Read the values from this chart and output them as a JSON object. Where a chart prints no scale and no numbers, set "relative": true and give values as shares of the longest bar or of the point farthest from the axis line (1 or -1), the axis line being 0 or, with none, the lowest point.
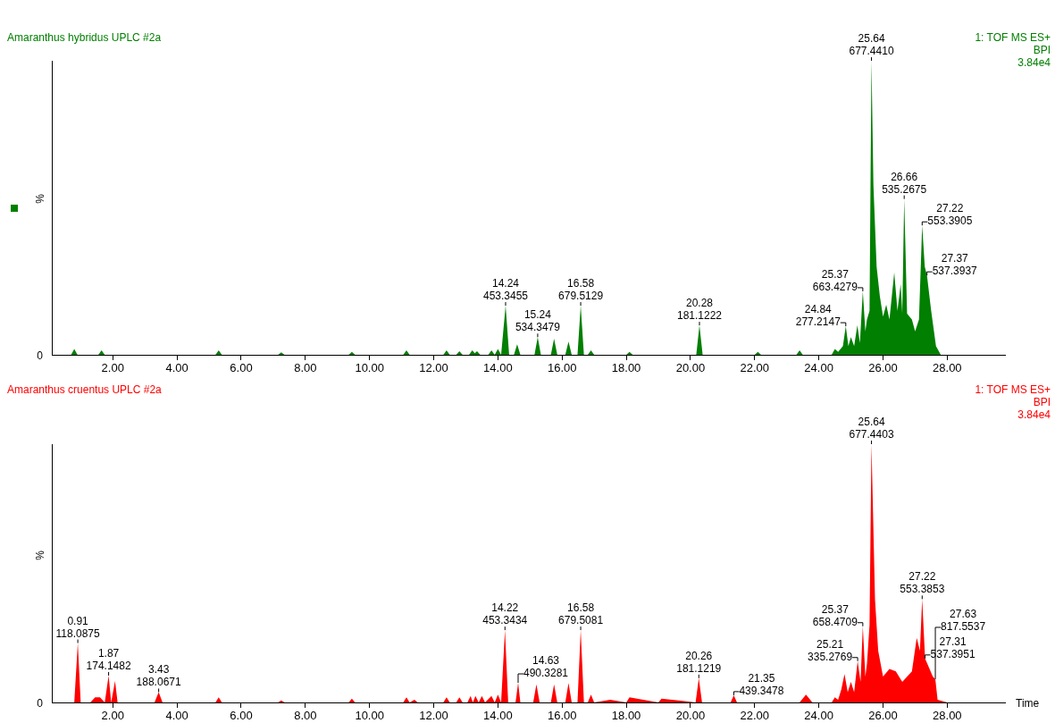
{
  "chart_data": [
    {
      "type": "area",
      "title": "Amaranthus hybridus UPLC #2a",
      "subtitle": "1: TOF MS ES+\nBPI\n3.84e4",
      "ylabel": "%",
      "relative": true,
      "legend": false,
      "grid": false,
      "marker": "none",
      "xlim": [
        0.1,
        29.8
      ],
      "xticks": [
        {
          "value": 2,
          "label": "2.00"
        },
        {
          "value": 4,
          "label": "4.00"
        },
        {
          "value": 6,
          "label": "6.00"
        },
        {
          "value": 8,
          "label": "8.00"
        },
        {
          "value": 10,
          "label": "10.00"
        },
        {
          "value": 12,
          "label": "12.00"
        },
        {
          "value": 14,
          "label": "14.00"
        },
        {
          "value": 16,
          "label": "16.00"
        },
        {
          "value": 18,
          "label": "18.00"
        },
        {
          "value": 20,
          "label": "20.00"
        },
        {
          "value": 22,
          "label": "22.00"
        },
        {
          "value": 24,
          "label": "24.00"
        },
        {
          "value": 26,
          "label": "26.00"
        },
        {
          "value": 28,
          "label": "28.00"
        }
      ],
      "series": [
        {
          "color": "#007f00",
          "x": [
            0.1,
            0.7,
            0.8,
            0.9,
            1.55,
            1.65,
            1.75,
            5.2,
            5.3,
            5.4,
            7.15,
            7.25,
            7.35,
            9.35,
            9.45,
            9.55,
            11.05,
            11.15,
            11.25,
            12.3,
            12.4,
            12.5,
            12.7,
            12.8,
            12.9,
            13.1,
            13.2,
            13.28,
            13.35,
            13.45,
            13.7,
            13.8,
            13.9,
            14.0,
            14.1,
            14.24,
            14.35,
            14.5,
            14.6,
            14.7,
            15.14,
            15.24,
            15.34,
            15.65,
            15.75,
            15.85,
            16.1,
            16.2,
            16.3,
            16.48,
            16.58,
            16.68,
            16.8,
            16.9,
            17.0,
            18.0,
            18.1,
            18.2,
            20.18,
            20.28,
            20.38,
            22.0,
            22.1,
            22.2,
            23.3,
            23.4,
            23.5,
            24.4,
            24.5,
            24.6,
            24.75,
            24.84,
            24.92,
            25.0,
            25.1,
            25.2,
            25.28,
            25.37,
            25.45,
            25.5,
            25.58,
            25.64,
            25.7,
            25.8,
            25.9,
            26.0,
            26.1,
            26.2,
            26.35,
            26.45,
            26.55,
            26.6,
            26.66,
            26.75,
            26.9,
            27.0,
            27.12,
            27.22,
            27.3,
            27.37,
            27.5,
            27.65,
            27.8,
            29.8
          ],
          "values": [
            0,
            0,
            0.02,
            0,
            0,
            0.015,
            0,
            0,
            0.015,
            0,
            0,
            0.008,
            0,
            0,
            0.01,
            0,
            0,
            0.015,
            0,
            0,
            0.015,
            0,
            0,
            0.012,
            0,
            0,
            0.015,
            0.005,
            0.012,
            0,
            0,
            0.015,
            0,
            0.02,
            0,
            0.167,
            0,
            0,
            0.036,
            0,
            0,
            0.06,
            0,
            0,
            0.055,
            0,
            0,
            0.045,
            0,
            0,
            0.167,
            0,
            0,
            0.015,
            0,
            0,
            0.01,
            0,
            0,
            0.1,
            0,
            0,
            0.01,
            0,
            0,
            0.015,
            0,
            0,
            0.02,
            0.01,
            0.03,
            0.097,
            0.03,
            0.06,
            0.03,
            0.1,
            0.04,
            0.216,
            0.08,
            0.12,
            0.15,
            1.0,
            0.58,
            0.3,
            0.2,
            0.13,
            0.17,
            0.12,
            0.28,
            0.15,
            0.24,
            0.14,
            0.53,
            0.14,
            0.12,
            0.08,
            0.12,
            0.44,
            0.3,
            0.27,
            0.15,
            0.03,
            0,
            0
          ]
        }
      ],
      "annotations": [
        "0",
        {
          "text": "14.24\n453.3455",
          "x": 14.24,
          "y": 0.167
        },
        {
          "text": "15.24\n534.3479",
          "x": 15.24,
          "y": 0.06
        },
        {
          "text": "16.58\n679.5129",
          "x": 16.58,
          "y": 0.167
        },
        {
          "text": "20.28\n181.1222",
          "x": 20.28,
          "y": 0.1
        },
        {
          "text": "24.84\n277.2147",
          "x": 24.84,
          "y": 0.097
        },
        {
          "text": "25.37\n663.4279",
          "x": 25.37,
          "y": 0.216
        },
        {
          "text": "25.64\n677.4410",
          "x": 25.64,
          "y": 1.0
        },
        {
          "text": "26.66\n535.2675",
          "x": 26.66,
          "y": 0.53
        },
        {
          "text": "27.22\n553.3905",
          "x": 27.22,
          "y": 0.44
        },
        {
          "text": "27.37\n537.3937",
          "x": 27.37,
          "y": 0.27
        }
      ]
    },
    {
      "type": "area",
      "title": "Amaranthus cruentus UPLC #2a",
      "subtitle": "1: TOF MS ES+\nBPI\n3.84e4",
      "ylabel": "%",
      "xlabel": "Time",
      "relative": true,
      "legend": false,
      "grid": false,
      "marker": "none",
      "xlim": [
        0.1,
        29.8
      ],
      "xticks": [
        {
          "value": 2,
          "label": "2.00"
        },
        {
          "value": 4,
          "label": "4.00"
        },
        {
          "value": 6,
          "label": "6.00"
        },
        {
          "value": 8,
          "label": "8.00"
        },
        {
          "value": 10,
          "label": "10.00"
        },
        {
          "value": 12,
          "label": "12.00"
        },
        {
          "value": 14,
          "label": "14.00"
        },
        {
          "value": 16,
          "label": "16.00"
        },
        {
          "value": 18,
          "label": "18.00"
        },
        {
          "value": 20,
          "label": "20.00"
        },
        {
          "value": 22,
          "label": "22.00"
        },
        {
          "value": 24,
          "label": "24.00"
        },
        {
          "value": 26,
          "label": "26.00"
        },
        {
          "value": 28,
          "label": "28.00"
        }
      ],
      "series": [
        {
          "color": "#ff0000",
          "x": [
            0.1,
            0.8,
            0.91,
            1.0,
            1.3,
            1.45,
            1.6,
            1.75,
            1.87,
            1.95,
            2.07,
            2.15,
            3.3,
            3.43,
            3.55,
            5.2,
            5.3,
            5.4,
            7.15,
            7.25,
            7.35,
            9.35,
            9.45,
            9.55,
            11.05,
            11.15,
            11.25,
            11.4,
            11.5,
            12.3,
            12.4,
            12.5,
            12.7,
            12.8,
            12.9,
            13.05,
            13.15,
            13.22,
            13.3,
            13.4,
            13.5,
            13.6,
            13.8,
            13.9,
            14.0,
            14.1,
            14.22,
            14.32,
            14.55,
            14.63,
            14.7,
            15.1,
            15.2,
            15.3,
            15.65,
            15.75,
            15.85,
            16.1,
            16.2,
            16.3,
            16.48,
            16.58,
            16.68,
            16.8,
            16.9,
            17.0,
            17.5,
            18.0,
            18.1,
            19.0,
            19.1,
            20.16,
            20.26,
            20.36,
            21.25,
            21.35,
            21.45,
            23.4,
            23.6,
            23.8,
            24.4,
            24.5,
            24.6,
            24.7,
            24.8,
            24.9,
            25.0,
            25.1,
            25.21,
            25.3,
            25.37,
            25.45,
            25.5,
            25.58,
            25.64,
            25.75,
            25.85,
            26.0,
            26.2,
            26.4,
            26.6,
            26.9,
            27.05,
            27.15,
            27.22,
            27.31,
            27.45,
            27.55,
            27.63,
            27.7,
            28.0,
            29.8
          ],
          "values": [
            0,
            0,
            0.23,
            0,
            0,
            0.02,
            0.02,
            0,
            0.104,
            0,
            0.083,
            0,
            0,
            0.04,
            0,
            0,
            0.02,
            0,
            0,
            0.008,
            0,
            0,
            0.015,
            0,
            0,
            0.02,
            0,
            0.01,
            0,
            0,
            0.02,
            0,
            0,
            0.02,
            0,
            0,
            0.025,
            0,
            0.025,
            0,
            0.025,
            0,
            0.025,
            0,
            0.03,
            0,
            0.28,
            0,
            0,
            0.076,
            0,
            0,
            0.07,
            0,
            0,
            0.07,
            0,
            0,
            0.075,
            0,
            0,
            0.28,
            0,
            0,
            0.03,
            0,
            0.01,
            0,
            0.02,
            0,
            0.015,
            0,
            0.094,
            0,
            0,
            0.028,
            0,
            0,
            0.03,
            0,
            0,
            0.02,
            0.01,
            0.05,
            0.11,
            0.04,
            0.08,
            0.04,
            0.16,
            0.08,
            0.295,
            0.1,
            0.15,
            0.3,
            1.0,
            0.4,
            0.2,
            0.1,
            0.13,
            0.12,
            0.08,
            0.12,
            0.25,
            0.2,
            0.4,
            0.17,
            0.13,
            0.1,
            0.09,
            0.01,
            0,
            0
          ]
        }
      ],
      "annotations": [
        "0",
        {
          "text": "0.91\n118.0875",
          "x": 0.91,
          "y": 0.23
        },
        {
          "text": "1.87\n174.1482",
          "x": 1.87,
          "y": 0.104
        },
        {
          "text": "3.43\n188.0671",
          "x": 3.43,
          "y": 0.04
        },
        {
          "text": "14.22\n453.3434",
          "x": 14.22,
          "y": 0.28
        },
        {
          "text": "14.63\n490.3281",
          "x": 14.63,
          "y": 0.076
        },
        {
          "text": "16.58\n679.5081",
          "x": 16.58,
          "y": 0.28
        },
        {
          "text": "20.26\n181.1219",
          "x": 20.26,
          "y": 0.094
        },
        {
          "text": "21.35\n439.3478",
          "x": 21.35,
          "y": 0.028
        },
        {
          "text": "25.21\n335.2769",
          "x": 25.21,
          "y": 0.16
        },
        {
          "text": "25.37\n658.4709",
          "x": 25.37,
          "y": 0.295
        },
        {
          "text": "25.64\n677.4403",
          "x": 25.64,
          "y": 1.0
        },
        {
          "text": "27.22\n553.3853",
          "x": 27.22,
          "y": 0.4
        },
        {
          "text": "27.31\n537.3951",
          "x": 27.31,
          "y": 0.17
        },
        {
          "text": "27.63\n817.5537",
          "x": 27.63,
          "y": 0.09
        }
      ]
    }
  ]
}
